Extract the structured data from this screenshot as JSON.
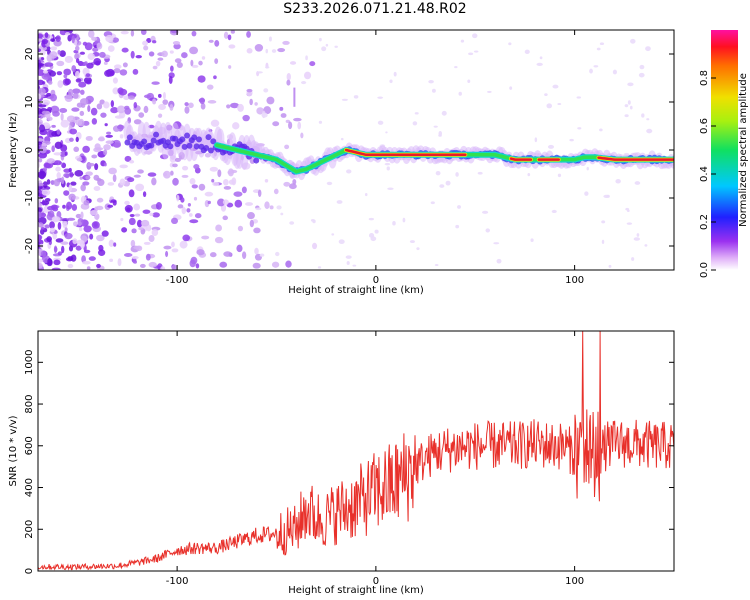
{
  "page": {
    "title": "S233.2026.071.21.48.R02"
  },
  "chart_data": [
    {
      "type": "heatmap",
      "title": "S233.2026.071.21.48.R02",
      "xlabel": "Height of straight line (km)",
      "ylabel": "Frequency (Hz)",
      "xlim": [
        -170,
        150
      ],
      "ylim": [
        -25,
        25
      ],
      "xticks": [
        "-100",
        "0",
        "100"
      ],
      "yticks": [
        "-20",
        "-10",
        "0",
        "10",
        "20"
      ],
      "colorbar": {
        "label": "Normalized spectral amplitude",
        "range": [
          0,
          1
        ],
        "ticks": [
          "0.0",
          "0.2",
          "0.4",
          "0.6",
          "0.8"
        ]
      },
      "ridge": {
        "x": [
          -120,
          -100,
          -80,
          -70,
          -60,
          -50,
          -40,
          -35,
          -30,
          -20,
          -15,
          -10,
          -5,
          0,
          10,
          20,
          40,
          60,
          70,
          80,
          90,
          100,
          105,
          110,
          120,
          150
        ],
        "y": [
          2,
          2,
          1,
          0,
          -1,
          -2,
          -4.5,
          -4,
          -3,
          -1,
          0,
          -0.5,
          -1,
          -1,
          -1,
          -1,
          -1,
          -1,
          -2,
          -2,
          -2,
          -2,
          -1.5,
          -1.5,
          -2,
          -2
        ]
      },
      "colors": {
        "ridge_peak": "#e8182c",
        "ridge_mid": "#20d060",
        "scatter": "#7020e0"
      }
    },
    {
      "type": "line",
      "xlabel": "Height of straight line (km)",
      "ylabel": "SNR (10 * v/v)",
      "xlim": [
        -170,
        150
      ],
      "ylim": [
        0,
        1150
      ],
      "xticks": [
        "-100",
        "0",
        "100"
      ],
      "yticks": [
        "0",
        "200",
        "400",
        "600",
        "800",
        "1000"
      ],
      "series": [
        {
          "name": "SNR",
          "color": "#e8302a",
          "x": [
            -170,
            -150,
            -130,
            -120,
            -110,
            -100,
            -90,
            -80,
            -70,
            -60,
            -50,
            -40,
            -35,
            -30,
            -25,
            -20,
            -10,
            0,
            10,
            20,
            25,
            30,
            40,
            50,
            60,
            70,
            80,
            90,
            95,
            100,
            103,
            106,
            110,
            113,
            116,
            120,
            130,
            140,
            150
          ],
          "y": [
            20,
            20,
            25,
            40,
            60,
            100,
            110,
            110,
            140,
            170,
            180,
            200,
            300,
            250,
            250,
            280,
            320,
            380,
            420,
            500,
            540,
            570,
            590,
            600,
            600,
            600,
            610,
            600,
            600,
            560,
            560,
            600,
            560,
            560,
            600,
            610,
            610,
            600,
            600
          ]
        }
      ]
    }
  ]
}
